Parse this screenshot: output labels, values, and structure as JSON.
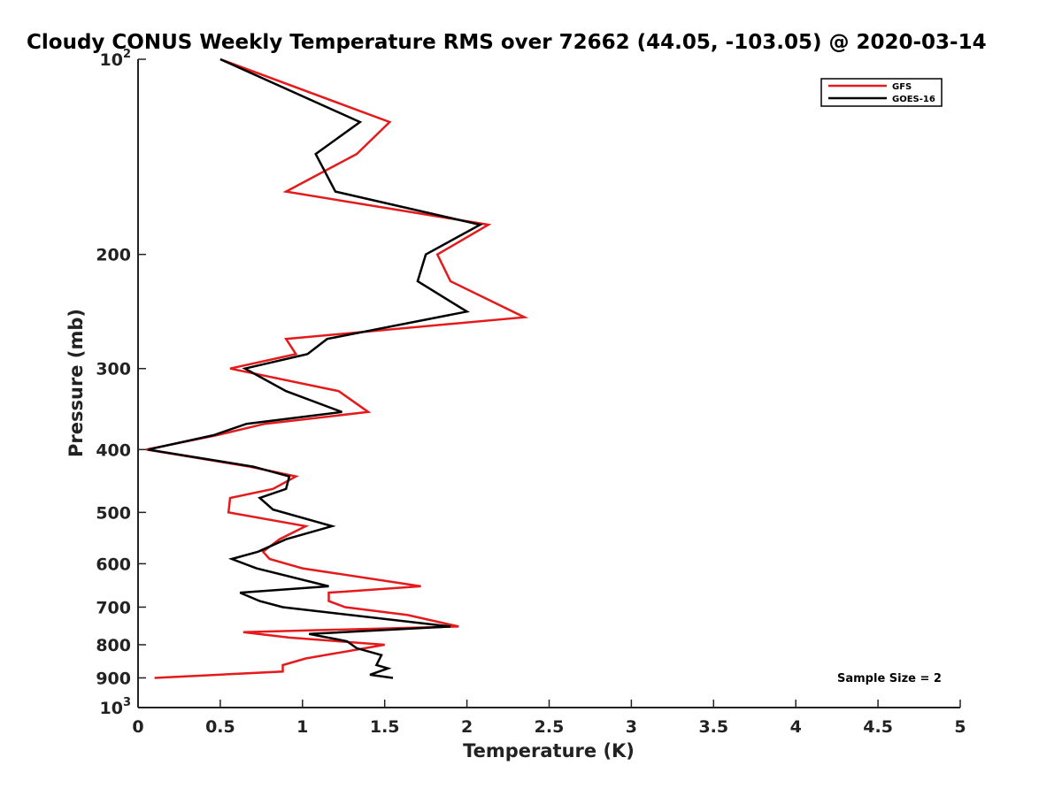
{
  "chart_data": {
    "type": "line",
    "title": "Cloudy CONUS Weekly Temperature RMS over 72662 (44.05, -103.05) @ 2020-03-14",
    "xlabel": "Temperature (K)",
    "ylabel": "Pressure (mb)",
    "xlim": [
      0,
      5
    ],
    "ylim": [
      100,
      1000
    ],
    "yscale": "log",
    "y_reversed": true,
    "grid": false,
    "legend_position": "top-right",
    "x_ticks": [
      "0",
      "0.5",
      "1",
      "1.5",
      "2",
      "2.5",
      "3",
      "3.5",
      "4",
      "4.5",
      "5"
    ],
    "y_ticks": [
      {
        "value": 100,
        "base": "10",
        "exp": "2"
      },
      {
        "value": 200,
        "label": "200"
      },
      {
        "value": 300,
        "label": "300"
      },
      {
        "value": 400,
        "label": "400"
      },
      {
        "value": 500,
        "label": "500"
      },
      {
        "value": 600,
        "label": "600"
      },
      {
        "value": 700,
        "label": "700"
      },
      {
        "value": 800,
        "label": "800"
      },
      {
        "value": 900,
        "label": "900"
      },
      {
        "value": 1000,
        "base": "10",
        "exp": "3"
      }
    ],
    "annotation": "Sample Size = 2",
    "series": [
      {
        "name": "GFS",
        "color": "#e41a1c",
        "points": [
          {
            "x": 0.5,
            "p": 100
          },
          {
            "x": 1.53,
            "p": 125
          },
          {
            "x": 1.33,
            "p": 140
          },
          {
            "x": 0.9,
            "p": 160
          },
          {
            "x": 2.13,
            "p": 180
          },
          {
            "x": 1.82,
            "p": 200
          },
          {
            "x": 1.9,
            "p": 220
          },
          {
            "x": 2.35,
            "p": 250
          },
          {
            "x": 0.9,
            "p": 270
          },
          {
            "x": 0.96,
            "p": 285
          },
          {
            "x": 0.56,
            "p": 300
          },
          {
            "x": 1.22,
            "p": 325
          },
          {
            "x": 1.4,
            "p": 350
          },
          {
            "x": 0.77,
            "p": 365
          },
          {
            "x": 0.48,
            "p": 380
          },
          {
            "x": 0.05,
            "p": 400
          },
          {
            "x": 0.68,
            "p": 425
          },
          {
            "x": 0.96,
            "p": 440
          },
          {
            "x": 0.82,
            "p": 460
          },
          {
            "x": 0.56,
            "p": 475
          },
          {
            "x": 0.55,
            "p": 500
          },
          {
            "x": 1.02,
            "p": 525
          },
          {
            "x": 0.86,
            "p": 550
          },
          {
            "x": 0.76,
            "p": 575
          },
          {
            "x": 0.8,
            "p": 590
          },
          {
            "x": 1.0,
            "p": 610
          },
          {
            "x": 1.72,
            "p": 650
          },
          {
            "x": 1.16,
            "p": 665
          },
          {
            "x": 1.16,
            "p": 685
          },
          {
            "x": 1.26,
            "p": 700
          },
          {
            "x": 1.64,
            "p": 720
          },
          {
            "x": 1.95,
            "p": 750
          },
          {
            "x": 0.64,
            "p": 765
          },
          {
            "x": 0.92,
            "p": 780
          },
          {
            "x": 1.5,
            "p": 800
          },
          {
            "x": 1.02,
            "p": 840
          },
          {
            "x": 0.88,
            "p": 860
          },
          {
            "x": 0.88,
            "p": 880
          },
          {
            "x": 0.1,
            "p": 900
          }
        ]
      },
      {
        "name": "GOES-16",
        "color": "#000000",
        "points": [
          {
            "x": 0.5,
            "p": 100
          },
          {
            "x": 1.35,
            "p": 125
          },
          {
            "x": 1.08,
            "p": 140
          },
          {
            "x": 1.2,
            "p": 160
          },
          {
            "x": 2.08,
            "p": 180
          },
          {
            "x": 1.75,
            "p": 200
          },
          {
            "x": 1.7,
            "p": 220
          },
          {
            "x": 2.0,
            "p": 245
          },
          {
            "x": 1.15,
            "p": 270
          },
          {
            "x": 1.03,
            "p": 285
          },
          {
            "x": 0.65,
            "p": 300
          },
          {
            "x": 0.9,
            "p": 325
          },
          {
            "x": 1.24,
            "p": 350
          },
          {
            "x": 0.66,
            "p": 365
          },
          {
            "x": 0.46,
            "p": 380
          },
          {
            "x": 0.06,
            "p": 400
          },
          {
            "x": 0.7,
            "p": 425
          },
          {
            "x": 0.92,
            "p": 440
          },
          {
            "x": 0.9,
            "p": 460
          },
          {
            "x": 0.74,
            "p": 475
          },
          {
            "x": 0.82,
            "p": 495
          },
          {
            "x": 1.18,
            "p": 525
          },
          {
            "x": 0.9,
            "p": 550
          },
          {
            "x": 0.73,
            "p": 575
          },
          {
            "x": 0.57,
            "p": 590
          },
          {
            "x": 0.72,
            "p": 610
          },
          {
            "x": 1.16,
            "p": 650
          },
          {
            "x": 0.62,
            "p": 665
          },
          {
            "x": 0.74,
            "p": 685
          },
          {
            "x": 0.88,
            "p": 700
          },
          {
            "x": 1.9,
            "p": 750
          },
          {
            "x": 1.04,
            "p": 770
          },
          {
            "x": 1.27,
            "p": 790
          },
          {
            "x": 1.33,
            "p": 810
          },
          {
            "x": 1.48,
            "p": 830
          },
          {
            "x": 1.45,
            "p": 860
          },
          {
            "x": 1.52,
            "p": 870
          },
          {
            "x": 1.41,
            "p": 890
          },
          {
            "x": 1.55,
            "p": 900
          }
        ]
      }
    ]
  }
}
